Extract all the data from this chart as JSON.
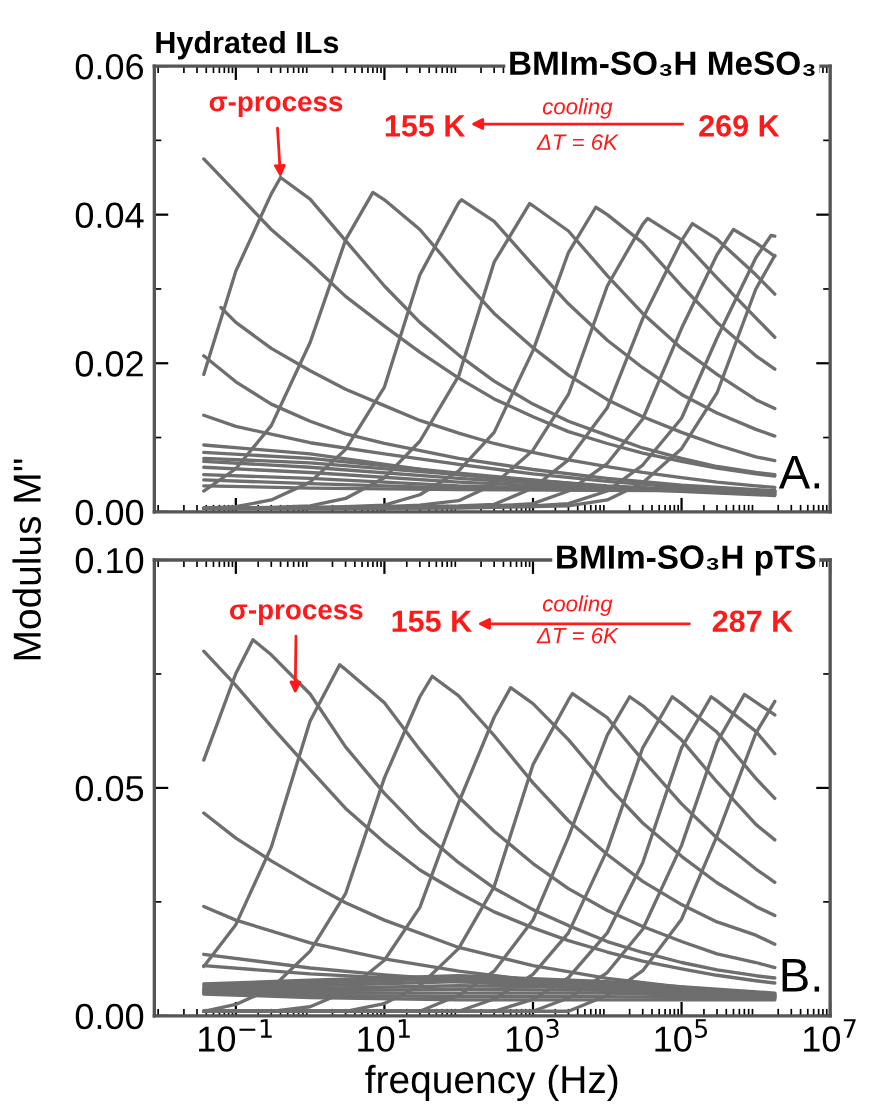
{
  "chart_data": [
    {
      "type": "line",
      "title": "Hydrated ILs",
      "subtitle": "BMIm-SO₃H MeSO₃",
      "ylabel": "Modulus M''",
      "color": "#6e6e6e",
      "log": "x",
      "tick_labels": "y",
      "xlim": [
        0.008,
        10000000
      ],
      "xticks": [
        {
          "value": 0.1,
          "label": null
        },
        {
          "value": 10,
          "label": null
        },
        {
          "value": 1000,
          "label": null
        },
        {
          "value": 100000,
          "label": null
        },
        {
          "value": 10000000,
          "label": null
        }
      ],
      "ylim": [
        0,
        0.06
      ],
      "yticks": [
        {
          "value": 0,
          "label": "0.00"
        },
        {
          "value": 0.02,
          "label": "0.02"
        },
        {
          "value": 0.04,
          "label": "0.04"
        },
        {
          "value": 0.06,
          "label": "0.06"
        }
      ],
      "annotations": [
        {
          "text": "σ-process",
          "x": 0.4,
          "y": 0.045
        },
        "155 K",
        "269 K",
        "cooling",
        "ΔT = 6K",
        "A."
      ],
      "x": [
        0.037,
        0.1,
        0.3,
        1,
        3,
        10,
        30,
        100,
        300,
        1000,
        3000,
        10000,
        30000,
        100000,
        300000,
        1000000,
        1800000
      ],
      "series": [
        {
          "values": [
            0.0475,
            0.043,
            0.038,
            0.0335,
            0.029,
            0.025,
            0.0215,
            0.018,
            0.0152,
            0.0128,
            0.0108,
            0.0092,
            0.0079,
            0.0068,
            0.0059,
            0.0051,
            0.0048
          ]
        },
        {
          "x": [
            0.037,
            0.1,
            0.3,
            0.4,
            1,
            3,
            10,
            30,
            100,
            300,
            1000,
            3000,
            10000,
            30000,
            100000,
            300000,
            1000000,
            1800000
          ],
          "values": [
            0.0185,
            0.0324,
            0.0428,
            0.045,
            0.0421,
            0.0365,
            0.0304,
            0.0255,
            0.0211,
            0.0176,
            0.0145,
            0.0122,
            0.0103,
            0.0086,
            0.0072,
            0.0061,
            0.0053,
            0.005
          ]
        },
        {
          "x": [
            0.037,
            0.1,
            0.3,
            1,
            3,
            7,
            10,
            30,
            100,
            300,
            1000,
            3000,
            10000,
            30000,
            100000,
            300000,
            1000000,
            1800000
          ],
          "values": [
            0.0028,
            0.0058,
            0.0116,
            0.0228,
            0.0366,
            0.043,
            0.042,
            0.038,
            0.0319,
            0.0267,
            0.0221,
            0.0184,
            0.0151,
            0.0128,
            0.0107,
            0.009,
            0.0074,
            0.0069
          ]
        },
        {
          "x": [
            0.037,
            0.1,
            0.3,
            1,
            3,
            10,
            30,
            100,
            110,
            300,
            1000,
            3000,
            10000,
            30000,
            100000,
            300000,
            1000000,
            1800000
          ],
          "values": [
            0.0005,
            0.0007,
            0.0016,
            0.004,
            0.0084,
            0.0168,
            0.0319,
            0.0416,
            0.042,
            0.0391,
            0.0332,
            0.028,
            0.0231,
            0.0194,
            0.0158,
            0.0133,
            0.0111,
            0.0102
          ]
        },
        {
          "x": [
            0.037,
            0.1,
            0.3,
            1,
            3,
            10,
            30,
            100,
            300,
            900,
            1000,
            3000,
            10000,
            30000,
            100000,
            300000,
            1000000,
            1800000
          ],
          "values": [
            0.0005,
            0.0005,
            0.0006,
            0.0008,
            0.0018,
            0.0046,
            0.0095,
            0.0183,
            0.0336,
            0.0415,
            0.0412,
            0.0378,
            0.0318,
            0.0267,
            0.022,
            0.0185,
            0.0151,
            0.0139
          ]
        },
        {
          "x": [
            0.037,
            0.1,
            0.3,
            1,
            3,
            10,
            30,
            100,
            300,
            1000,
            3000,
            7000,
            10000,
            30000,
            100000,
            300000,
            1000000,
            1800000
          ],
          "values": [
            0.0005,
            0.0005,
            0.0005,
            0.0006,
            0.0007,
            0.0009,
            0.0023,
            0.0055,
            0.0107,
            0.0217,
            0.0349,
            0.041,
            0.04,
            0.0362,
            0.0304,
            0.0255,
            0.021,
            0.0192
          ]
        },
        {
          "x": [
            0.037,
            0.1,
            0.3,
            1,
            3,
            10,
            30,
            100,
            300,
            1000,
            3000,
            10000,
            30000,
            35000,
            100000,
            300000,
            1000000,
            1800000
          ],
          "values": [
            0.0005,
            0.0005,
            0.0005,
            0.0005,
            0.0006,
            0.0007,
            0.0009,
            0.0015,
            0.0037,
            0.0083,
            0.0158,
            0.0304,
            0.0387,
            0.0395,
            0.0366,
            0.0315,
            0.0261,
            0.0235
          ]
        },
        {
          "x": [
            0.037,
            0.1,
            0.3,
            1,
            3,
            10,
            30,
            100,
            300,
            1000,
            3000,
            10000,
            30000,
            100000,
            140000,
            300000,
            1000000,
            1800000
          ],
          "values": [
            0.0005,
            0.0005,
            0.0005,
            0.0005,
            0.0005,
            0.0006,
            0.0007,
            0.0008,
            0.001,
            0.0032,
            0.007,
            0.014,
            0.026,
            0.0365,
            0.0388,
            0.0367,
            0.0319,
            0.0293
          ]
        },
        {
          "x": [
            0.037,
            0.1,
            0.3,
            1,
            3,
            10,
            30,
            100,
            300,
            1000,
            3000,
            10000,
            30000,
            100000,
            300000,
            500000,
            1000000,
            1800000
          ],
          "values": [
            0.0005,
            0.0005,
            0.0005,
            0.0005,
            0.0005,
            0.0005,
            0.0006,
            0.0007,
            0.0008,
            0.0011,
            0.0028,
            0.0065,
            0.0125,
            0.0247,
            0.0346,
            0.038,
            0.0362,
            0.0344
          ]
        },
        {
          "x": [
            0.037,
            0.1,
            0.3,
            1,
            3,
            10,
            30,
            100,
            300,
            1000,
            3000,
            10000,
            30000,
            100000,
            300000,
            1000000,
            1600000,
            1800000
          ],
          "values": [
            0.0005,
            0.0005,
            0.0005,
            0.0005,
            0.0005,
            0.0005,
            0.0005,
            0.0006,
            0.0007,
            0.0008,
            0.0011,
            0.0028,
            0.0063,
            0.0126,
            0.0234,
            0.0342,
            0.0372,
            0.0371
          ]
        },
        {
          "values": [
            0.0005,
            0.0005,
            0.0005,
            0.0005,
            0.0005,
            0.0005,
            0.0005,
            0.0005,
            0.0006,
            0.0007,
            0.0008,
            0.0016,
            0.0039,
            0.0085,
            0.016,
            0.03,
            0.0345
          ]
        },
        {
          "x": [
            0.063,
            0.1,
            0.3,
            1,
            3,
            10,
            30,
            100,
            300,
            1000,
            3000,
            10000,
            30000,
            100000,
            300000,
            1000000,
            1800000
          ],
          "values": [
            0.0275,
            0.0255,
            0.022,
            0.019,
            0.0165,
            0.0143,
            0.0123,
            0.0106,
            0.0092,
            0.008,
            0.007,
            0.0061,
            0.0053,
            0.0046,
            0.004,
            0.0035,
            0.0033
          ]
        },
        {
          "x": [
            0.037,
            0.1,
            0.3,
            1,
            3,
            10,
            100,
            1000,
            10000,
            100000,
            1000000,
            1800000
          ],
          "values": [
            0.021,
            0.0175,
            0.0145,
            0.0122,
            0.0105,
            0.0092,
            0.0072,
            0.0057,
            0.0045,
            0.0036,
            0.003,
            0.0028
          ]
        },
        {
          "x": [
            0.037,
            0.1,
            1,
            10,
            100,
            1000,
            10000,
            100000,
            1000000,
            1800000
          ],
          "values": [
            0.013,
            0.0115,
            0.0093,
            0.0078,
            0.0064,
            0.0051,
            0.0041,
            0.0033,
            0.0028,
            0.0027
          ]
        },
        {
          "x": [
            0.037,
            1,
            100,
            10000,
            1800000
          ],
          "values": [
            0.009,
            0.0078,
            0.005,
            0.0032,
            0.0022
          ]
        },
        {
          "x": [
            0.037,
            1,
            100,
            10000,
            1800000
          ],
          "values": [
            0.008,
            0.0072,
            0.0052,
            0.0034,
            0.0023
          ]
        },
        {
          "x": [
            0.037,
            1,
            100,
            10000,
            1800000
          ],
          "values": [
            0.0072,
            0.0066,
            0.005,
            0.0035,
            0.0024
          ]
        },
        {
          "x": [
            0.037,
            1,
            100,
            10000,
            1800000
          ],
          "values": [
            0.0068,
            0.006,
            0.0045,
            0.0033,
            0.0025
          ]
        },
        {
          "x": [
            0.037,
            1,
            100,
            10000,
            1800000
          ],
          "values": [
            0.006,
            0.0053,
            0.004,
            0.0031,
            0.0026
          ]
        },
        {
          "x": [
            0.037,
            1,
            100,
            10000,
            1800000
          ],
          "values": [
            0.005,
            0.0045,
            0.0035,
            0.003,
            0.0027
          ]
        },
        {
          "x": [
            0.037,
            1,
            100,
            10000,
            1800000
          ],
          "values": [
            0.0043,
            0.0038,
            0.0032,
            0.0029,
            0.0028
          ]
        },
        {
          "x": [
            0.037,
            1,
            100,
            10000,
            1800000
          ],
          "values": [
            0.0035,
            0.0032,
            0.003,
            0.0029,
            0.0029
          ]
        }
      ]
    },
    {
      "type": "line",
      "subtitle": "BMIm-SO₃H pTS",
      "xlabel": "frequency (Hz)",
      "color": "#6e6e6e",
      "log": "x",
      "xlim": [
        0.008,
        10000000
      ],
      "xticks": [
        {
          "value": 0.1,
          "label": "10$^{−1}$"
        },
        {
          "value": 10,
          "label": "10$^{1}$"
        },
        {
          "value": 1000,
          "label": "10$^{3}$"
        },
        {
          "value": 100000,
          "label": "10$^{5}$"
        },
        {
          "value": 10000000,
          "label": "10$^{7}$"
        }
      ],
      "ylim": [
        0,
        0.1
      ],
      "yticks": [
        {
          "value": 0,
          "label": "0.00"
        },
        {
          "value": 0.05,
          "label": "0.05"
        },
        {
          "value": 0.1,
          "label": "0.10"
        }
      ],
      "annotations": [
        {
          "text": "σ-process",
          "x": 0.63,
          "y": 0.0706
        },
        "155 K",
        "287 K",
        "cooling",
        "ΔT = 6K",
        "B."
      ],
      "x": [
        0.037,
        0.1,
        0.3,
        1,
        3,
        10,
        30,
        100,
        300,
        1000,
        3000,
        10000,
        30000,
        100000,
        300000,
        1000000,
        1800000
      ],
      "series": [
        {
          "values": [
            0.08,
            0.0725,
            0.0635,
            0.054,
            0.0455,
            0.038,
            0.032,
            0.027,
            0.0228,
            0.0193,
            0.0165,
            0.014,
            0.012,
            0.0103,
            0.0089,
            0.0077,
            0.0072
          ]
        },
        {
          "x": [
            0.037,
            0.1,
            0.17,
            0.3,
            1,
            3,
            10,
            30,
            100,
            300,
            1000,
            3000,
            10000,
            30000,
            100000,
            300000,
            1000000,
            1800000
          ],
          "values": [
            0.0561,
            0.0751,
            0.0825,
            0.0792,
            0.0706,
            0.059,
            0.0488,
            0.0408,
            0.0336,
            0.028,
            0.0233,
            0.0198,
            0.0163,
            0.0139,
            0.0117,
            0.0101,
            0.0088,
            0.0083
          ]
        },
        {
          "x": [
            0.037,
            0.1,
            0.3,
            1,
            2.5,
            3,
            10,
            30,
            100,
            300,
            1000,
            3000,
            10000,
            30000,
            100000,
            300000,
            1000000,
            1800000
          ],
          "values": [
            0.0108,
            0.02,
            0.037,
            0.0647,
            0.077,
            0.076,
            0.0687,
            0.0584,
            0.048,
            0.0405,
            0.0334,
            0.0279,
            0.0231,
            0.0196,
            0.0163,
            0.0136,
            0.0117,
            0.0106
          ]
        },
        {
          "x": [
            0.037,
            0.1,
            0.3,
            1,
            3,
            10,
            30,
            44,
            100,
            300,
            1000,
            3000,
            10000,
            30000,
            100000,
            300000,
            1000000,
            1800000
          ],
          "values": [
            0.001,
            0.0025,
            0.006,
            0.0142,
            0.0268,
            0.0522,
            0.07,
            0.0745,
            0.0702,
            0.0615,
            0.0511,
            0.0428,
            0.0354,
            0.0295,
            0.0244,
            0.0206,
            0.0177,
            0.0157
          ]
        },
        {
          "x": [
            0.037,
            0.1,
            0.3,
            1,
            3,
            10,
            30,
            100,
            300,
            500,
            1000,
            3000,
            10000,
            30000,
            100000,
            300000,
            1000000,
            1800000
          ],
          "values": [
            0.001,
            0.001,
            0.001,
            0.002,
            0.0053,
            0.0122,
            0.0238,
            0.0468,
            0.0655,
            0.072,
            0.0685,
            0.0606,
            0.0505,
            0.0423,
            0.035,
            0.0292,
            0.024,
            0.022
          ]
        },
        {
          "x": [
            0.037,
            0.1,
            0.3,
            1,
            3,
            10,
            30,
            100,
            300,
            1000,
            3000,
            3400,
            10000,
            30000,
            100000,
            300000,
            1000000,
            1800000
          ],
          "values": [
            0.001,
            0.001,
            0.001,
            0.001,
            0.001,
            0.0027,
            0.0066,
            0.0148,
            0.0283,
            0.0551,
            0.0693,
            0.0707,
            0.0654,
            0.0561,
            0.0465,
            0.039,
            0.0322,
            0.0293
          ]
        },
        {
          "x": [
            0.037,
            0.1,
            0.3,
            1,
            3,
            10,
            30,
            100,
            300,
            1000,
            3000,
            10000,
            20000,
            30000,
            100000,
            300000,
            1000000,
            1800000
          ],
          "values": [
            0.001,
            0.001,
            0.001,
            0.001,
            0.001,
            0.001,
            0.001,
            0.0045,
            0.0098,
            0.021,
            0.0392,
            0.0616,
            0.07,
            0.068,
            0.0605,
            0.0513,
            0.042,
            0.0386
          ]
        },
        {
          "x": [
            0.037,
            0.1,
            0.3,
            1,
            3,
            10,
            30,
            100,
            300,
            1000,
            3000,
            10000,
            30000,
            75000,
            100000,
            300000,
            1000000,
            1800000
          ],
          "values": [
            0.001,
            0.001,
            0.001,
            0.001,
            0.001,
            0.001,
            0.001,
            0.001,
            0.0037,
            0.0091,
            0.0182,
            0.0364,
            0.0588,
            0.07,
            0.0685,
            0.0622,
            0.0521,
            0.0477
          ]
        },
        {
          "x": [
            0.037,
            0.1,
            0.3,
            1,
            3,
            10,
            30,
            100,
            300,
            1000,
            3000,
            10000,
            30000,
            100000,
            250000,
            300000,
            1000000,
            1800000
          ],
          "values": [
            0.001,
            0.001,
            0.001,
            0.001,
            0.001,
            0.001,
            0.001,
            0.001,
            0.001,
            0.0036,
            0.0084,
            0.0182,
            0.0336,
            0.0588,
            0.07,
            0.0691,
            0.0624,
            0.0575
          ]
        },
        {
          "x": [
            0.037,
            0.1,
            0.3,
            1,
            3,
            10,
            30,
            100,
            300,
            1000,
            3000,
            10000,
            30000,
            100000,
            300000,
            700000,
            1000000,
            1800000
          ],
          "values": [
            0.001,
            0.001,
            0.001,
            0.001,
            0.001,
            0.001,
            0.001,
            0.001,
            0.001,
            0.001,
            0.0039,
            0.0095,
            0.019,
            0.0374,
            0.06,
            0.0705,
            0.0688,
            0.066
          ]
        },
        {
          "values": [
            0.001,
            0.001,
            0.001,
            0.001,
            0.001,
            0.001,
            0.001,
            0.001,
            0.001,
            0.001,
            0.001,
            0.0045,
            0.0099,
            0.0212,
            0.0395,
            0.062,
            0.069
          ]
        },
        {
          "x": [
            0.037,
            0.1,
            0.3,
            1,
            3,
            10,
            100,
            1000,
            10000,
            100000,
            1000000,
            1800000
          ],
          "values": [
            0.0445,
            0.039,
            0.034,
            0.029,
            0.0248,
            0.021,
            0.015,
            0.011,
            0.0082,
            0.0063,
            0.005,
            0.0047
          ]
        },
        {
          "x": [
            0.037,
            0.1,
            1,
            10,
            100,
            1000,
            10000,
            100000,
            1000000,
            1800000
          ],
          "values": [
            0.024,
            0.021,
            0.016,
            0.0125,
            0.0098,
            0.0078,
            0.0063,
            0.0052,
            0.0044,
            0.0042
          ]
        },
        {
          "x": [
            0.037,
            1,
            10,
            100,
            10000,
            1000000,
            1800000
          ],
          "values": [
            0.0135,
            0.0105,
            0.009,
            0.0078,
            0.0058,
            0.0042,
            0.004
          ]
        },
        {
          "x": [
            0.037,
            1,
            100,
            10000,
            1800000
          ],
          "values": [
            0.011,
            0.0092,
            0.0075,
            0.0058,
            0.0043
          ]
        },
        {
          "x": [
            0.037,
            1,
            100,
            10000,
            1800000
          ],
          "values": [
            0.007,
            0.0078,
            0.0088,
            0.0075,
            0.005
          ]
        },
        {
          "x": [
            0.037,
            1,
            100,
            10000,
            1800000
          ],
          "values": [
            0.0065,
            0.0072,
            0.0082,
            0.0072,
            0.0048
          ]
        },
        {
          "x": [
            0.037,
            1,
            100,
            10000,
            1800000
          ],
          "values": [
            0.006,
            0.0066,
            0.0075,
            0.0068,
            0.0046
          ]
        },
        {
          "x": [
            0.037,
            1,
            100,
            10000,
            1800000
          ],
          "values": [
            0.0058,
            0.006,
            0.0066,
            0.0062,
            0.0044
          ]
        },
        {
          "x": [
            0.037,
            1,
            100,
            10000,
            1800000
          ],
          "values": [
            0.0055,
            0.0055,
            0.0058,
            0.0056,
            0.0042
          ]
        },
        {
          "x": [
            0.037,
            1,
            100,
            10000,
            1800000
          ],
          "values": [
            0.0052,
            0.005,
            0.005,
            0.005,
            0.004
          ]
        },
        {
          "x": [
            0.037,
            1,
            100,
            10000,
            1800000
          ],
          "values": [
            0.005,
            0.0045,
            0.0042,
            0.0042,
            0.0038
          ]
        },
        {
          "x": [
            0.037,
            1,
            100,
            10000,
            1800000
          ],
          "values": [
            0.0048,
            0.004,
            0.0035,
            0.0035,
            0.0035
          ]
        }
      ]
    }
  ]
}
